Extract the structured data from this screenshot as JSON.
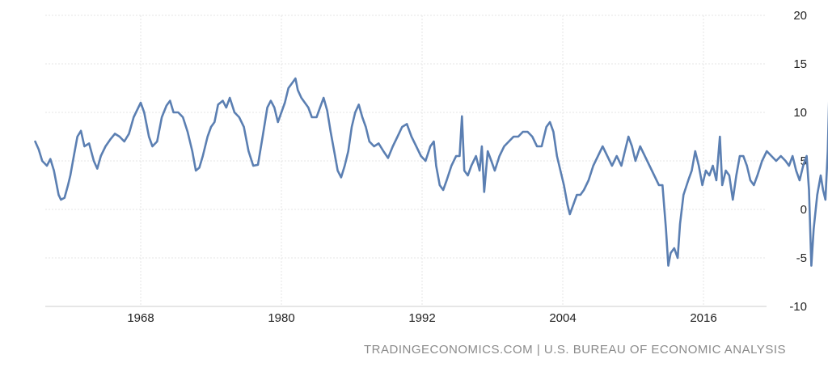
{
  "source_credit": "TRADINGECONOMICS.COM | U.S. BUREAU OF ECONOMIC ANALYSIS",
  "colors": {
    "series": "#5b7fb2",
    "grid": "#e6e6e6",
    "text": "#222222",
    "credit": "#8a8a8a"
  },
  "chart_data": {
    "type": "line",
    "title": "",
    "xlabel": "",
    "ylabel": "",
    "grid": true,
    "legend": "none",
    "xlim": [
      1959.0,
      2021.75
    ],
    "ylim": [
      -10,
      20
    ],
    "x_ticks": [
      1968,
      1980,
      1992,
      2004,
      2016
    ],
    "y_ticks": [
      20,
      15,
      10,
      5,
      0,
      -5,
      -10
    ],
    "y_axis_side": "right",
    "series": [
      {
        "color": "#5b7fb2",
        "points": [
          [
            1959.0,
            7.0
          ],
          [
            1959.3,
            6.2
          ],
          [
            1959.6,
            5.0
          ],
          [
            1960.0,
            4.5
          ],
          [
            1960.3,
            5.2
          ],
          [
            1960.6,
            4.0
          ],
          [
            1961.0,
            1.5
          ],
          [
            1961.2,
            1.0
          ],
          [
            1961.5,
            1.2
          ],
          [
            1961.8,
            2.5
          ],
          [
            1962.0,
            3.5
          ],
          [
            1962.3,
            5.5
          ],
          [
            1962.6,
            7.5
          ],
          [
            1962.9,
            8.1
          ],
          [
            1963.2,
            6.5
          ],
          [
            1963.6,
            6.8
          ],
          [
            1964.0,
            5.0
          ],
          [
            1964.3,
            4.2
          ],
          [
            1964.6,
            5.5
          ],
          [
            1965.0,
            6.5
          ],
          [
            1965.4,
            7.2
          ],
          [
            1965.8,
            7.8
          ],
          [
            1966.2,
            7.5
          ],
          [
            1966.6,
            7.0
          ],
          [
            1967.0,
            7.8
          ],
          [
            1967.4,
            9.5
          ],
          [
            1967.8,
            10.5
          ],
          [
            1968.0,
            11.0
          ],
          [
            1968.3,
            10.0
          ],
          [
            1968.7,
            7.5
          ],
          [
            1969.0,
            6.5
          ],
          [
            1969.4,
            7.0
          ],
          [
            1969.8,
            9.5
          ],
          [
            1970.2,
            10.7
          ],
          [
            1970.5,
            11.2
          ],
          [
            1970.8,
            10.0
          ],
          [
            1971.2,
            10.0
          ],
          [
            1971.6,
            9.5
          ],
          [
            1972.0,
            8.0
          ],
          [
            1972.4,
            6.0
          ],
          [
            1972.7,
            4.0
          ],
          [
            1973.0,
            4.3
          ],
          [
            1973.3,
            5.5
          ],
          [
            1973.7,
            7.5
          ],
          [
            1974.0,
            8.5
          ],
          [
            1974.3,
            9.0
          ],
          [
            1974.6,
            10.8
          ],
          [
            1975.0,
            11.2
          ],
          [
            1975.3,
            10.5
          ],
          [
            1975.6,
            11.5
          ],
          [
            1976.0,
            10.0
          ],
          [
            1976.4,
            9.5
          ],
          [
            1976.8,
            8.5
          ],
          [
            1977.2,
            6.0
          ],
          [
            1977.6,
            4.5
          ],
          [
            1978.0,
            4.6
          ],
          [
            1978.4,
            7.5
          ],
          [
            1978.8,
            10.5
          ],
          [
            1979.1,
            11.2
          ],
          [
            1979.4,
            10.5
          ],
          [
            1979.7,
            9.0
          ],
          [
            1980.0,
            10.0
          ],
          [
            1980.3,
            11.0
          ],
          [
            1980.6,
            12.5
          ],
          [
            1980.9,
            13.0
          ],
          [
            1981.2,
            13.5
          ],
          [
            1981.4,
            12.3
          ],
          [
            1981.7,
            11.5
          ],
          [
            1982.0,
            11.0
          ],
          [
            1982.3,
            10.5
          ],
          [
            1982.6,
            9.5
          ],
          [
            1983.0,
            9.5
          ],
          [
            1983.3,
            10.5
          ],
          [
            1983.6,
            11.5
          ],
          [
            1983.9,
            10.2
          ],
          [
            1984.2,
            8.0
          ],
          [
            1984.5,
            6.0
          ],
          [
            1984.8,
            4.0
          ],
          [
            1985.1,
            3.3
          ],
          [
            1985.4,
            4.5
          ],
          [
            1985.7,
            6.0
          ],
          [
            1986.0,
            8.5
          ],
          [
            1986.3,
            10.0
          ],
          [
            1986.6,
            10.8
          ],
          [
            1986.9,
            9.5
          ],
          [
            1987.2,
            8.5
          ],
          [
            1987.5,
            7.0
          ],
          [
            1987.9,
            6.5
          ],
          [
            1988.3,
            6.8
          ],
          [
            1988.7,
            6.0
          ],
          [
            1989.1,
            5.3
          ],
          [
            1989.5,
            6.5
          ],
          [
            1989.9,
            7.5
          ],
          [
            1990.3,
            8.5
          ],
          [
            1990.7,
            8.8
          ],
          [
            1991.1,
            7.5
          ],
          [
            1991.5,
            6.5
          ],
          [
            1991.9,
            5.5
          ],
          [
            1992.3,
            5.0
          ],
          [
            1992.7,
            6.5
          ],
          [
            1993.0,
            7.0
          ],
          [
            1993.2,
            4.5
          ],
          [
            1993.5,
            2.5
          ],
          [
            1993.8,
            2.0
          ],
          [
            1994.1,
            3.0
          ],
          [
            1994.5,
            4.5
          ],
          [
            1994.9,
            5.5
          ],
          [
            1995.2,
            5.5
          ],
          [
            1995.4,
            9.6
          ],
          [
            1995.6,
            4.0
          ],
          [
            1995.9,
            3.5
          ],
          [
            1996.2,
            4.5
          ],
          [
            1996.6,
            5.5
          ],
          [
            1996.9,
            4.0
          ],
          [
            1997.1,
            6.5
          ],
          [
            1997.3,
            1.8
          ],
          [
            1997.6,
            6.0
          ],
          [
            1997.9,
            5.0
          ],
          [
            1998.2,
            4.0
          ],
          [
            1998.6,
            5.5
          ],
          [
            1999.0,
            6.5
          ],
          [
            1999.4,
            7.0
          ],
          [
            1999.8,
            7.5
          ],
          [
            2000.2,
            7.5
          ],
          [
            2000.6,
            8.0
          ],
          [
            2001.0,
            8.0
          ],
          [
            2001.4,
            7.5
          ],
          [
            2001.8,
            6.5
          ],
          [
            2002.2,
            6.5
          ],
          [
            2002.6,
            8.5
          ],
          [
            2002.9,
            9.0
          ],
          [
            2003.2,
            8.0
          ],
          [
            2003.5,
            5.5
          ],
          [
            2003.8,
            4.0
          ],
          [
            2004.1,
            2.5
          ],
          [
            2004.4,
            0.5
          ],
          [
            2004.6,
            -0.5
          ],
          [
            2004.9,
            0.5
          ],
          [
            2005.2,
            1.5
          ],
          [
            2005.5,
            1.5
          ],
          [
            2005.8,
            2.0
          ],
          [
            2006.2,
            3.0
          ],
          [
            2006.6,
            4.5
          ],
          [
            2007.0,
            5.5
          ],
          [
            2007.4,
            6.5
          ],
          [
            2007.8,
            5.5
          ],
          [
            2008.2,
            4.5
          ],
          [
            2008.6,
            5.5
          ],
          [
            2009.0,
            4.5
          ],
          [
            2009.3,
            6.0
          ],
          [
            2009.6,
            7.5
          ],
          [
            2009.9,
            6.5
          ],
          [
            2010.2,
            5.0
          ],
          [
            2010.6,
            6.5
          ],
          [
            2011.0,
            5.5
          ],
          [
            2011.4,
            4.5
          ],
          [
            2011.8,
            3.5
          ],
          [
            2012.2,
            2.5
          ],
          [
            2012.5,
            2.5
          ],
          [
            2012.8,
            -2.0
          ],
          [
            2013.0,
            -5.8
          ],
          [
            2013.2,
            -4.5
          ],
          [
            2013.5,
            -4.0
          ],
          [
            2013.8,
            -5.0
          ],
          [
            2014.0,
            -1.5
          ],
          [
            2014.3,
            1.5
          ],
          [
            2014.7,
            3.0
          ],
          [
            2015.0,
            4.0
          ],
          [
            2015.3,
            6.0
          ],
          [
            2015.6,
            4.5
          ],
          [
            2015.9,
            2.5
          ],
          [
            2016.2,
            4.0
          ],
          [
            2016.5,
            3.5
          ],
          [
            2016.8,
            4.5
          ],
          [
            2017.1,
            3.0
          ],
          [
            2017.4,
            7.5
          ],
          [
            2017.6,
            2.5
          ],
          [
            2017.9,
            4.0
          ],
          [
            2018.2,
            3.5
          ],
          [
            2018.5,
            1.0
          ],
          [
            2018.8,
            3.5
          ],
          [
            2019.1,
            5.5
          ],
          [
            2019.4,
            5.5
          ],
          [
            2019.7,
            4.5
          ],
          [
            2020.0,
            3.0
          ],
          [
            2020.3,
            2.5
          ],
          [
            2020.6,
            3.5
          ],
          [
            2021.0,
            5.0
          ],
          [
            2021.4,
            6.0
          ],
          [
            2021.8,
            5.5
          ],
          [
            2022.2,
            5.0
          ],
          [
            2022.6,
            5.5
          ],
          [
            2023.0,
            5.0
          ],
          [
            2023.3,
            4.5
          ],
          [
            2023.6,
            5.5
          ],
          [
            2023.9,
            4.0
          ],
          [
            2024.2,
            3.0
          ],
          [
            2024.5,
            4.5
          ],
          [
            2024.8,
            5.5
          ],
          [
            2025.0,
            2.0
          ],
          [
            2025.2,
            -5.8
          ],
          [
            2025.4,
            -2.0
          ],
          [
            2025.7,
            1.5
          ],
          [
            2026.0,
            3.5
          ],
          [
            2026.2,
            2.0
          ],
          [
            2026.4,
            1.0
          ],
          [
            2026.6,
            6.0
          ],
          [
            2026.8,
            15.3
          ],
          [
            2027.0,
            12.0
          ],
          [
            2027.3,
            11.5
          ],
          [
            2027.6,
            10.0
          ],
          [
            2027.8,
            9.2
          ]
        ]
      }
    ]
  }
}
